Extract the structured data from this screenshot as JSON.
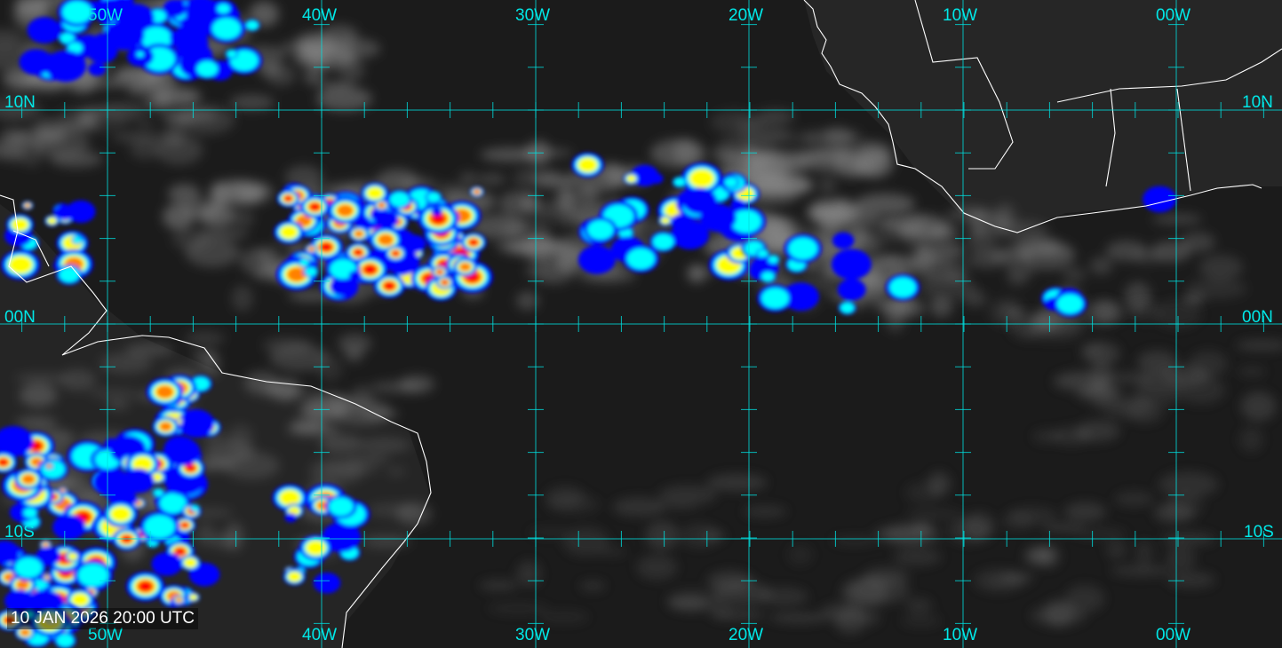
{
  "timestamp": "10 JAN 2026 20:00 UTC",
  "grid_color": "#00e0e0",
  "coastline_color": "#ffffff",
  "longitude_labels": [
    "50W",
    "40W",
    "30W",
    "20W",
    "10W",
    "00W"
  ],
  "latitude_labels": [
    "10N",
    "00N",
    "10S"
  ],
  "colorscale": [
    "#0000ff",
    "#00ffff",
    "#ffff00",
    "#ff8000",
    "#ff0000",
    "#8b0000"
  ]
}
